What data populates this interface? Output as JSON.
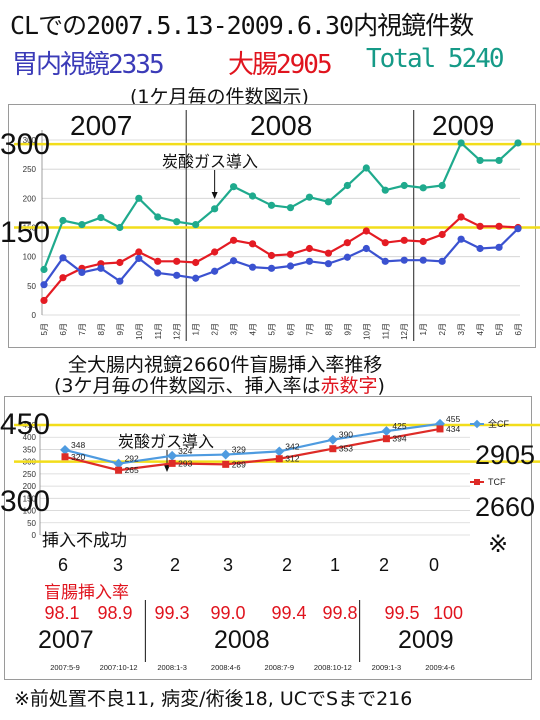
{
  "header": {
    "title": "CLでの2007.5.13-2009.6.30内視鏡件数",
    "upper_label": "胃内視鏡2335",
    "lower_label": "大腸2905",
    "total_label": "Total 5240",
    "colors": {
      "upper": "#3b3bb8",
      "lower": "#e0141e",
      "total": "#159a87"
    }
  },
  "chart_data": [
    {
      "type": "line",
      "subtitle": "(1ケ月毎の件数図示)",
      "years": [
        "2007",
        "2008",
        "2009"
      ],
      "annotation": "炭酸ガス導入",
      "ref_lines": [
        {
          "label": "300",
          "value": 293,
          "color": "#f2dd1a"
        },
        {
          "label": "150",
          "value": 150,
          "color": "#f2dd1a"
        }
      ],
      "ylim": [
        0,
        300
      ],
      "yticks": [
        0,
        50,
        100,
        150,
        200,
        250,
        300
      ],
      "x": [
        "5月",
        "6月",
        "7月",
        "8月",
        "9月",
        "10月",
        "11月",
        "12月",
        "1月",
        "2月",
        "3月",
        "4月",
        "5月",
        "6月",
        "7月",
        "8月",
        "9月",
        "10月",
        "11月",
        "12月",
        "1月",
        "2月",
        "3月",
        "4月",
        "5月",
        "6月"
      ],
      "series": [
        {
          "color": "#1faa8d",
          "values": [
            78,
            162,
            155,
            167,
            150,
            200,
            168,
            160,
            155,
            182,
            220,
            204,
            188,
            184,
            202,
            194,
            222,
            252,
            214,
            222,
            218,
            222,
            295,
            265,
            265,
            295
          ]
        },
        {
          "color": "#e41b23",
          "values": [
            25,
            64,
            80,
            88,
            90,
            108,
            92,
            92,
            90,
            108,
            128,
            122,
            102,
            104,
            114,
            106,
            124,
            144,
            124,
            128,
            126,
            138,
            168,
            152,
            152,
            150
          ]
        },
        {
          "color": "#3b52d0",
          "values": [
            52,
            98,
            73,
            80,
            58,
            97,
            72,
            68,
            63,
            75,
            93,
            82,
            80,
            84,
            92,
            88,
            99,
            114,
            92,
            94,
            94,
            92,
            130,
            114,
            116,
            148
          ]
        }
      ]
    },
    {
      "type": "line",
      "title_line1": "全大腸内視鏡2660件盲腸挿入率推移",
      "title_line2a": "(3ケ月毎の件数図示、挿入率は",
      "title_line2b": "赤数字",
      "title_line2c": ")",
      "ylim": [
        0,
        450
      ],
      "yticks": [
        0,
        50,
        100,
        150,
        200,
        250,
        300,
        350,
        400,
        450
      ],
      "categories": [
        "2007:5-9",
        "2007:10-12",
        "2008:1-3",
        "2008:4-6",
        "2008:7-9",
        "2008:10-12",
        "2009:1-3",
        "2009:4-6"
      ],
      "series": [
        {
          "name": "全CF",
          "color": "#4e9be0",
          "values": [
            348,
            292,
            324,
            329,
            342,
            390,
            425,
            455
          ]
        },
        {
          "name": "TCF",
          "color": "#de2b27",
          "values": [
            320,
            265,
            293,
            289,
            312,
            353,
            394,
            434
          ]
        }
      ],
      "annotation": "炭酸ガス導入",
      "ref_lines": [
        {
          "label": "450",
          "value": 450,
          "color": "#f2dd1a"
        },
        {
          "label": "300",
          "value": 300,
          "color": "#f2dd1a"
        }
      ],
      "failure_label": "挿入不成功",
      "failures": [
        "6",
        "3",
        "2",
        "3",
        "2",
        "1",
        "2",
        "0"
      ],
      "rate_label": "盲腸挿入率",
      "rates": [
        "98.1",
        "98.9",
        "99.3",
        "99.0",
        "99.4",
        "99.8",
        "99.5",
        "100"
      ],
      "years": [
        "2007",
        "2008",
        "2009"
      ],
      "side": {
        "total": "2905",
        "tcf": "2660",
        "mark": "※"
      }
    }
  ],
  "footnote": "※前処置不良11, 病変/術後18, UCでSまで216"
}
